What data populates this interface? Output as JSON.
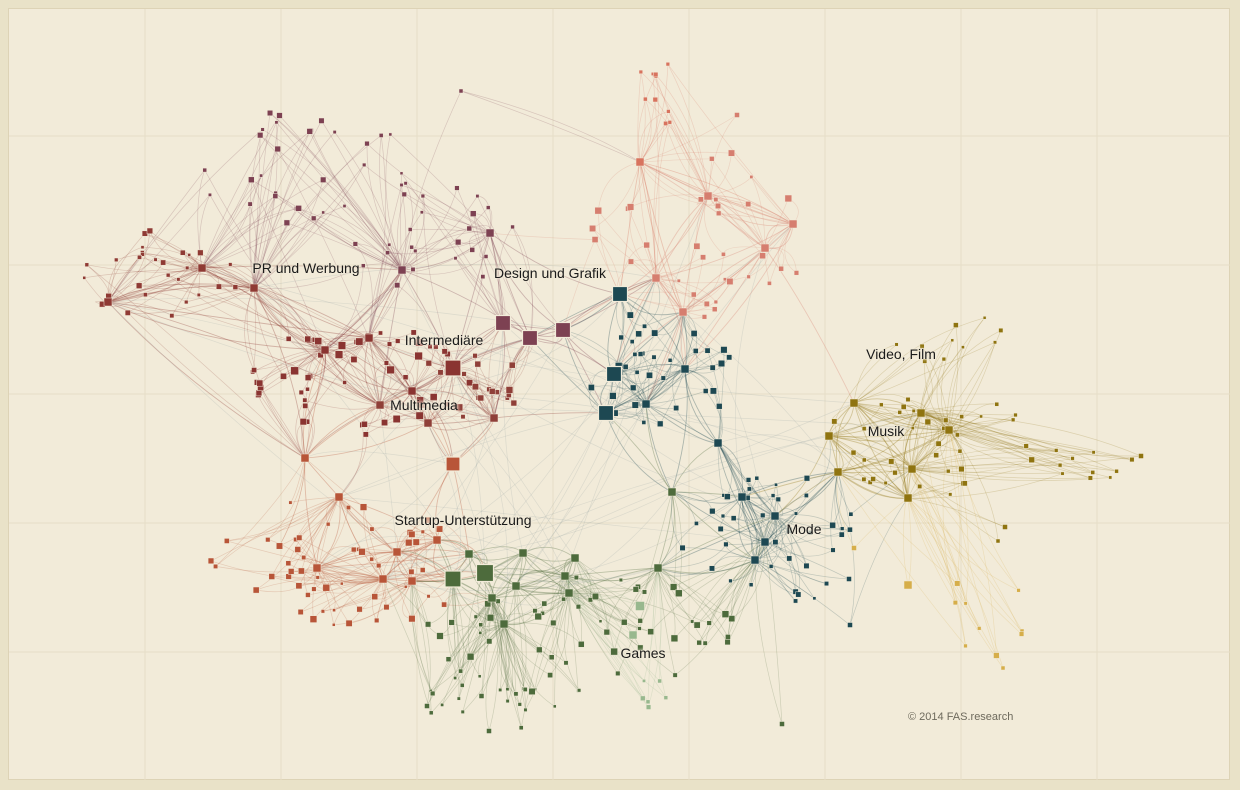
{
  "clusters": [
    {
      "id": "pr",
      "label": "PR und Werbung",
      "color": "#8f3a34"
    },
    {
      "id": "design",
      "label": "Design und Grafik",
      "color": "#7d4152"
    },
    {
      "id": "intermediaere",
      "label": "Intermediäre",
      "color": "#8a3431"
    },
    {
      "id": "multimedia",
      "label": "Multimedia",
      "color": "#8f3f38"
    },
    {
      "id": "video",
      "label": "Video, Film",
      "color": "#8f7410"
    },
    {
      "id": "musik",
      "label": "Musik",
      "color": "#8f7410"
    },
    {
      "id": "mode",
      "label": "Mode",
      "color": "#1d4852"
    },
    {
      "id": "startup",
      "label": "Startup-Unterstützung",
      "color": "#b85538"
    },
    {
      "id": "games",
      "label": "Games",
      "color": "#4d6b3c"
    }
  ],
  "extra_colors": {
    "salmon": "#d8735e",
    "pink": "#d67e6f",
    "gold_light": "#d6ae4a",
    "games_light": "#98b88e",
    "background": "#f2ebd9"
  },
  "credit": "© 2014 FAS.research"
}
